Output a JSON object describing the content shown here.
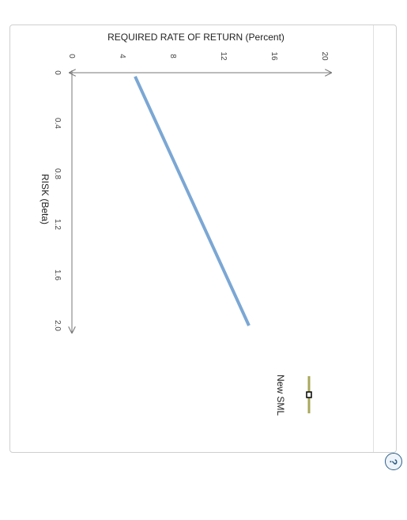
{
  "chart_data": {
    "type": "line",
    "title": "",
    "ylabel": "REQUIRED RATE OF RETURN (Percent)",
    "xlabel": "RISK (Beta)",
    "xlim": [
      0,
      2.0
    ],
    "ylim": [
      0,
      20
    ],
    "x_ticks": [
      "0",
      "0.4",
      "0.8",
      "1.2",
      "1.6",
      "2.0"
    ],
    "y_ticks": [
      "0",
      "4",
      "8",
      "12",
      "16",
      "20"
    ],
    "series": [
      {
        "x": [
          0.03,
          2.0
        ],
        "y": [
          5.0,
          14.0
        ],
        "color": "#7ba7d4"
      }
    ],
    "grid": false
  },
  "legend": {
    "label": "New SML",
    "line_color": "#a8a85a",
    "marker_color": "#000000"
  },
  "help": {
    "symbol": "?"
  }
}
